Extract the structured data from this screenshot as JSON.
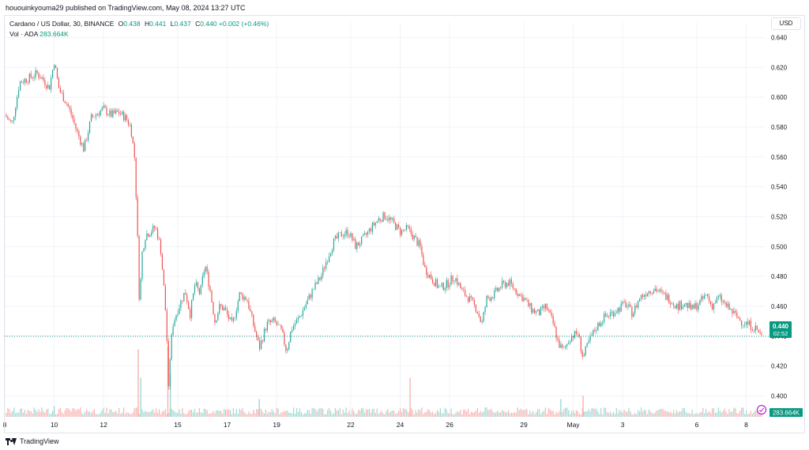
{
  "header": {
    "published": "hououinkyouma29 published on TradingView.com, May 08, 2024 13:27 UTC"
  },
  "legend": {
    "symbol": "Cardano / US Dollar, 30, BINANCE",
    "o_label": "O",
    "o_value": "0.438",
    "h_label": "H",
    "h_value": "0.441",
    "l_label": "L",
    "l_value": "0.437",
    "c_label": "C",
    "c_value": "0.440",
    "change": "+0.002 (+0.46%)",
    "vol_label": "Vol · ADA",
    "vol_value": "283.664K"
  },
  "currency_button": "USD",
  "price_tag": {
    "price": "0.440",
    "countdown": "02:52"
  },
  "volume_tag": "283.664K",
  "footer": {
    "brand": "TradingView"
  },
  "colors": {
    "up": "#26a69a",
    "down": "#ef5350",
    "last": "#089981",
    "vol_up": "#9fd8d2",
    "vol_down": "#f7b3b1"
  },
  "chart_data": {
    "type": "candlestick",
    "timeframe": "30",
    "y_ticks": [
      "0.640",
      "0.620",
      "0.600",
      "0.580",
      "0.560",
      "0.540",
      "0.520",
      "0.500",
      "0.480",
      "0.460",
      "0.440",
      "0.420",
      "0.400"
    ],
    "ylim": [
      0.386,
      0.645
    ],
    "last_price": 0.44,
    "x_ticks": [
      {
        "label": "8",
        "day": 8
      },
      {
        "label": "10",
        "day": 10
      },
      {
        "label": "12",
        "day": 12
      },
      {
        "label": "15",
        "day": 15
      },
      {
        "label": "17",
        "day": 17
      },
      {
        "label": "19",
        "day": 19
      },
      {
        "label": "22",
        "day": 22
      },
      {
        "label": "24",
        "day": 24
      },
      {
        "label": "26",
        "day": 26
      },
      {
        "label": "29",
        "day": 29
      },
      {
        "label": "May",
        "day": 31
      },
      {
        "label": "3",
        "day": 33
      },
      {
        "label": "6",
        "day": 36
      },
      {
        "label": "8",
        "day": 38
      }
    ],
    "xlim": [
      8,
      38.75
    ],
    "price_path": [
      [
        8.0,
        0.588
      ],
      [
        8.3,
        0.582
      ],
      [
        8.6,
        0.61
      ],
      [
        9.0,
        0.613
      ],
      [
        9.3,
        0.616
      ],
      [
        9.6,
        0.611
      ],
      [
        9.8,
        0.606
      ],
      [
        10.0,
        0.624
      ],
      [
        10.2,
        0.605
      ],
      [
        10.5,
        0.596
      ],
      [
        10.7,
        0.588
      ],
      [
        10.9,
        0.578
      ],
      [
        11.2,
        0.565
      ],
      [
        11.5,
        0.586
      ],
      [
        11.8,
        0.59
      ],
      [
        12.0,
        0.592
      ],
      [
        12.3,
        0.588
      ],
      [
        12.6,
        0.59
      ],
      [
        12.9,
        0.586
      ],
      [
        13.1,
        0.58
      ],
      [
        13.25,
        0.56
      ],
      [
        13.35,
        0.52
      ],
      [
        13.45,
        0.46
      ],
      [
        13.55,
        0.495
      ],
      [
        13.7,
        0.508
      ],
      [
        13.9,
        0.51
      ],
      [
        14.1,
        0.513
      ],
      [
        14.3,
        0.5
      ],
      [
        14.45,
        0.47
      ],
      [
        14.55,
        0.445
      ],
      [
        14.62,
        0.402
      ],
      [
        14.7,
        0.43
      ],
      [
        14.8,
        0.448
      ],
      [
        15.0,
        0.458
      ],
      [
        15.3,
        0.47
      ],
      [
        15.5,
        0.455
      ],
      [
        15.7,
        0.475
      ],
      [
        15.9,
        0.468
      ],
      [
        16.1,
        0.488
      ],
      [
        16.3,
        0.472
      ],
      [
        16.5,
        0.45
      ],
      [
        16.7,
        0.46
      ],
      [
        16.9,
        0.458
      ],
      [
        17.2,
        0.447
      ],
      [
        17.5,
        0.468
      ],
      [
        17.8,
        0.465
      ],
      [
        18.1,
        0.445
      ],
      [
        18.3,
        0.432
      ],
      [
        18.6,
        0.448
      ],
      [
        18.9,
        0.45
      ],
      [
        19.2,
        0.443
      ],
      [
        19.4,
        0.43
      ],
      [
        19.6,
        0.445
      ],
      [
        19.9,
        0.452
      ],
      [
        20.2,
        0.462
      ],
      [
        20.5,
        0.472
      ],
      [
        20.8,
        0.48
      ],
      [
        21.0,
        0.49
      ],
      [
        21.3,
        0.503
      ],
      [
        21.6,
        0.508
      ],
      [
        21.9,
        0.51
      ],
      [
        22.2,
        0.5
      ],
      [
        22.5,
        0.505
      ],
      [
        22.8,
        0.512
      ],
      [
        23.1,
        0.518
      ],
      [
        23.4,
        0.521
      ],
      [
        23.7,
        0.516
      ],
      [
        24.0,
        0.51
      ],
      [
        24.3,
        0.512
      ],
      [
        24.6,
        0.505
      ],
      [
        24.8,
        0.5
      ],
      [
        25.0,
        0.485
      ],
      [
        25.3,
        0.478
      ],
      [
        25.6,
        0.472
      ],
      [
        25.9,
        0.475
      ],
      [
        26.2,
        0.48
      ],
      [
        26.5,
        0.47
      ],
      [
        26.8,
        0.465
      ],
      [
        27.1,
        0.458
      ],
      [
        27.3,
        0.448
      ],
      [
        27.5,
        0.465
      ],
      [
        27.8,
        0.468
      ],
      [
        28.1,
        0.474
      ],
      [
        28.4,
        0.476
      ],
      [
        28.7,
        0.47
      ],
      [
        29.0,
        0.465
      ],
      [
        29.3,
        0.458
      ],
      [
        29.6,
        0.455
      ],
      [
        29.9,
        0.46
      ],
      [
        30.2,
        0.448
      ],
      [
        30.4,
        0.435
      ],
      [
        30.6,
        0.43
      ],
      [
        30.9,
        0.44
      ],
      [
        31.2,
        0.442
      ],
      [
        31.4,
        0.425
      ],
      [
        31.6,
        0.435
      ],
      [
        31.9,
        0.445
      ],
      [
        32.2,
        0.452
      ],
      [
        32.5,
        0.455
      ],
      [
        32.8,
        0.458
      ],
      [
        33.1,
        0.462
      ],
      [
        33.4,
        0.455
      ],
      [
        33.7,
        0.466
      ],
      [
        34.0,
        0.47
      ],
      [
        34.3,
        0.472
      ],
      [
        34.6,
        0.468
      ],
      [
        34.9,
        0.465
      ],
      [
        35.2,
        0.46
      ],
      [
        35.5,
        0.462
      ],
      [
        35.8,
        0.458
      ],
      [
        36.1,
        0.462
      ],
      [
        36.4,
        0.468
      ],
      [
        36.6,
        0.46
      ],
      [
        36.9,
        0.466
      ],
      [
        37.2,
        0.46
      ],
      [
        37.5,
        0.455
      ],
      [
        37.8,
        0.45
      ],
      [
        38.1,
        0.448
      ],
      [
        38.4,
        0.445
      ],
      [
        38.6,
        0.44
      ]
    ],
    "volume_spikes": [
      {
        "day": 10.0,
        "level": 0.15
      },
      {
        "day": 13.4,
        "level": 0.95
      },
      {
        "day": 13.5,
        "level": 0.55
      },
      {
        "day": 14.6,
        "level": 1.0
      },
      {
        "day": 14.7,
        "level": 0.6
      },
      {
        "day": 24.4,
        "level": 0.55
      },
      {
        "day": 30.5,
        "level": 0.25
      },
      {
        "day": 31.4,
        "level": 0.3
      },
      {
        "day": 18.3,
        "level": 0.25
      }
    ]
  }
}
